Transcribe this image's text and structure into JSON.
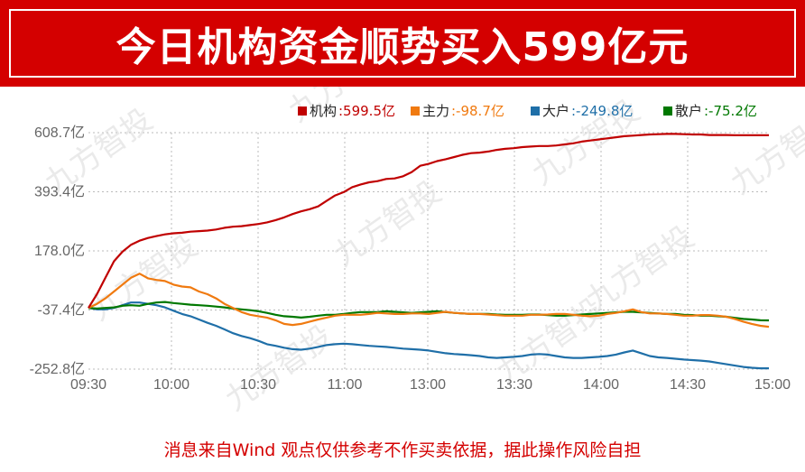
{
  "banner": {
    "title": "今日机构资金顺势买入599亿元",
    "bg_color": "#d40000"
  },
  "footer": {
    "disclaimer": "消息来自Wind 观点仅供参考不作买卖依据，据此操作风险自担"
  },
  "watermark": "九方智投",
  "chart_data": {
    "type": "line",
    "y_ticks": [
      608.7,
      393.4,
      178.0,
      -37.4,
      -252.8
    ],
    "y_tick_labels": [
      "608.7亿",
      "393.4亿",
      "178.0亿",
      "-37.4亿",
      "-252.8亿"
    ],
    "x_tick_labels": [
      "09:30",
      "10:00",
      "10:30",
      "11:00",
      "13:00",
      "13:30",
      "14:00",
      "14:30",
      "15:00"
    ],
    "ylim": [
      -252.8,
      608.7
    ],
    "grid": true,
    "legend_position": "top-right",
    "x": [
      0,
      3,
      6,
      9,
      12,
      15,
      18,
      21,
      24,
      27,
      30,
      33,
      36,
      39,
      42,
      45,
      48,
      51,
      54,
      57,
      60,
      63,
      66,
      69,
      72,
      75,
      78,
      81,
      84,
      87,
      90,
      93,
      96,
      99,
      102,
      105,
      108,
      111,
      114,
      117,
      120,
      123,
      126,
      129,
      132,
      135,
      138,
      141,
      144,
      147,
      150,
      153,
      156,
      159,
      162,
      165,
      168,
      171,
      174,
      177,
      180,
      183,
      186,
      189,
      192,
      195,
      198,
      201,
      204,
      207,
      210,
      213,
      216,
      219,
      222,
      225,
      228,
      231,
      234,
      237,
      240
    ],
    "series": [
      {
        "name": "机构",
        "value_label": "599.5亿",
        "color": "#c00000",
        "values": [
          -30,
          20,
          80,
          140,
          175,
          200,
          215,
          225,
          232,
          238,
          242,
          244,
          248,
          250,
          252,
          256,
          262,
          266,
          268,
          272,
          276,
          282,
          290,
          300,
          312,
          322,
          330,
          340,
          360,
          380,
          392,
          410,
          420,
          428,
          432,
          440,
          442,
          450,
          465,
          488,
          495,
          505,
          512,
          520,
          528,
          534,
          536,
          540,
          546,
          550,
          552,
          556,
          558,
          560,
          560,
          562,
          566,
          570,
          576,
          580,
          584,
          588,
          592,
          596,
          598,
          600,
          602,
          603,
          604,
          604,
          603,
          602,
          602,
          600,
          600,
          600,
          599.5,
          599.5,
          599.5,
          599.5,
          599.5
        ]
      },
      {
        "name": "主力",
        "value_label": "-98.7亿",
        "color": "#f07a10",
        "values": [
          -30,
          -15,
          5,
          30,
          55,
          80,
          95,
          78,
          72,
          68,
          55,
          48,
          45,
          30,
          20,
          5,
          -15,
          -30,
          -45,
          -55,
          -60,
          -65,
          -75,
          -88,
          -92,
          -88,
          -80,
          -72,
          -65,
          -58,
          -55,
          -55,
          -55,
          -52,
          -48,
          -50,
          -52,
          -52,
          -50,
          -50,
          -52,
          -48,
          -44,
          -48,
          -50,
          -52,
          -52,
          -54,
          -56,
          -58,
          -58,
          -58,
          -55,
          -55,
          -54,
          -52,
          -52,
          -55,
          -58,
          -60,
          -58,
          -52,
          -48,
          -42,
          -35,
          -45,
          -50,
          -50,
          -52,
          -55,
          -58,
          -58,
          -56,
          -56,
          -58,
          -62,
          -70,
          -80,
          -88,
          -95,
          -98.7
        ]
      },
      {
        "name": "大户",
        "value_label": "-249.8亿",
        "color": "#1f6fa8",
        "values": [
          -30,
          -35,
          -35,
          -30,
          -20,
          -10,
          -10,
          -15,
          -20,
          -28,
          -40,
          -52,
          -60,
          -72,
          -84,
          -95,
          -108,
          -122,
          -132,
          -140,
          -150,
          -162,
          -168,
          -175,
          -180,
          -182,
          -178,
          -172,
          -165,
          -162,
          -160,
          -162,
          -165,
          -168,
          -170,
          -172,
          -175,
          -178,
          -180,
          -182,
          -185,
          -190,
          -195,
          -198,
          -200,
          -202,
          -205,
          -210,
          -212,
          -210,
          -208,
          -205,
          -200,
          -198,
          -200,
          -205,
          -210,
          -212,
          -212,
          -210,
          -208,
          -205,
          -200,
          -192,
          -185,
          -195,
          -205,
          -210,
          -212,
          -215,
          -218,
          -220,
          -222,
          -225,
          -230,
          -235,
          -240,
          -245,
          -248,
          -249.8,
          -249.8
        ]
      },
      {
        "name": "散户",
        "value_label": "-75.2亿",
        "color": "#007800",
        "values": [
          -30,
          -32,
          -30,
          -28,
          -22,
          -20,
          -22,
          -15,
          -10,
          -8,
          -12,
          -15,
          -18,
          -20,
          -22,
          -25,
          -28,
          -32,
          -35,
          -38,
          -42,
          -48,
          -55,
          -60,
          -62,
          -65,
          -62,
          -58,
          -55,
          -55,
          -52,
          -48,
          -45,
          -45,
          -45,
          -42,
          -44,
          -46,
          -48,
          -46,
          -44,
          -42,
          -45,
          -48,
          -50,
          -52,
          -52,
          -52,
          -54,
          -55,
          -55,
          -55,
          -54,
          -54,
          -56,
          -58,
          -58,
          -56,
          -54,
          -52,
          -50,
          -48,
          -46,
          -44,
          -44,
          -46,
          -48,
          -50,
          -52,
          -52,
          -55,
          -56,
          -58,
          -58,
          -60,
          -62,
          -66,
          -70,
          -72,
          -75,
          -75.2
        ]
      }
    ]
  }
}
